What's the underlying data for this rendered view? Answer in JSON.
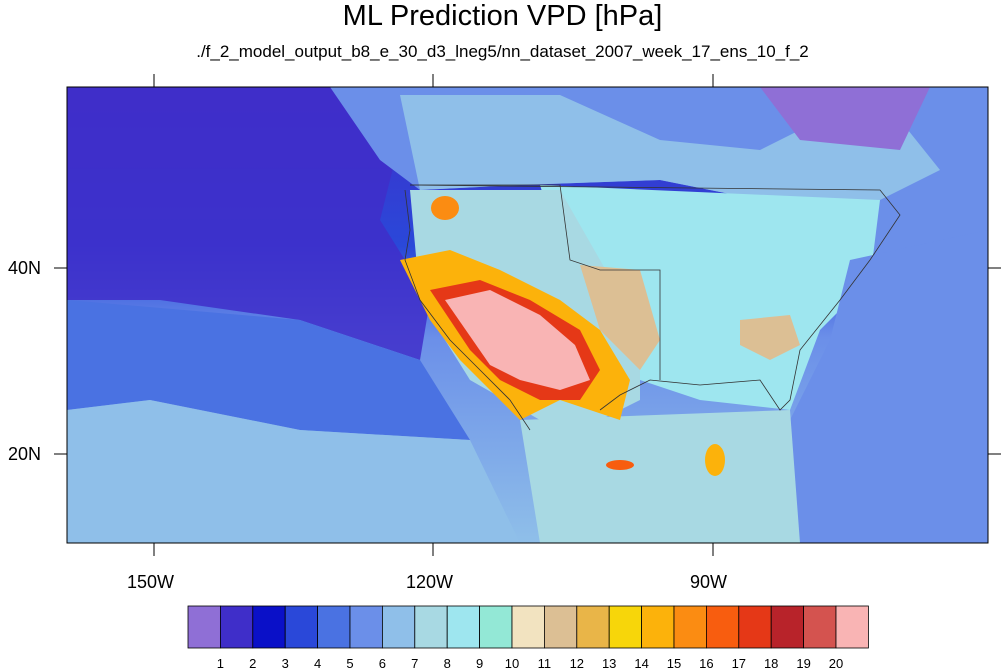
{
  "title": "ML Prediction VPD [hPa]",
  "subtitle": "./f_2_model_output_b8_e_30_d3_lneg5/nn_dataset_2007_week_17_ens_10_f_2",
  "axes": {
    "lat_labels": [
      "40N",
      "20N"
    ],
    "lon_labels": [
      "150W",
      "120W",
      "90W"
    ]
  },
  "colorbar": {
    "labels": [
      "1",
      "2",
      "3",
      "4",
      "5",
      "6",
      "7",
      "8",
      "9",
      "10",
      "11",
      "12",
      "13",
      "14",
      "15",
      "16",
      "17",
      "18",
      "19",
      "20"
    ],
    "colors": [
      "#8f6fd6",
      "#3f2ec9",
      "#0a10c8",
      "#2a48d9",
      "#4a72e2",
      "#6b8fe9",
      "#8fbfe9",
      "#a8d9e3",
      "#9ee6ef",
      "#93e8d6",
      "#f2e3c0",
      "#dcbf94",
      "#e9b548",
      "#f7d60a",
      "#fcb20b",
      "#fb8c12",
      "#f85d0f",
      "#e53817",
      "#b8232a",
      "#d4534f",
      "#f9b4b4"
    ]
  },
  "map_colors": {
    "ocean_north": "#3f2ec9",
    "ocean_mid": "#4a72e2",
    "ocean_south": "#8fbfe9",
    "land_east": "#9ee6ef",
    "land_mid": "#a8d9e3",
    "hot": "#f9b4b4",
    "warm": "#fcb20b",
    "dry": "#dcbf94"
  }
}
